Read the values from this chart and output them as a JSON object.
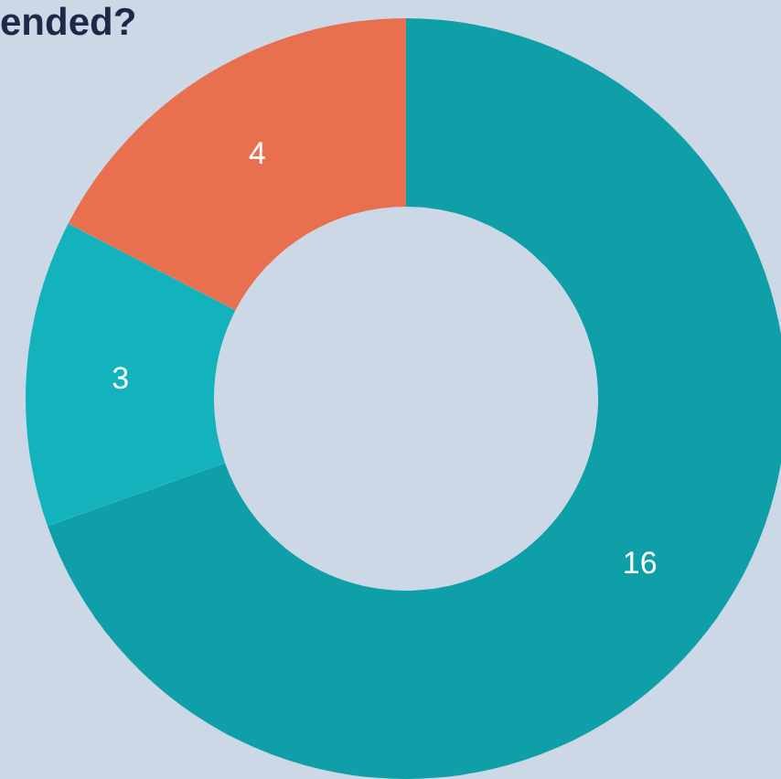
{
  "chart_data": {
    "type": "donut",
    "title": "ended?",
    "categories": [
      null,
      null,
      null
    ],
    "values": [
      16,
      3,
      4
    ],
    "colors": [
      "#0f9fa8",
      "#13b3bd",
      "#e8704f"
    ],
    "data_labels": true
  }
}
